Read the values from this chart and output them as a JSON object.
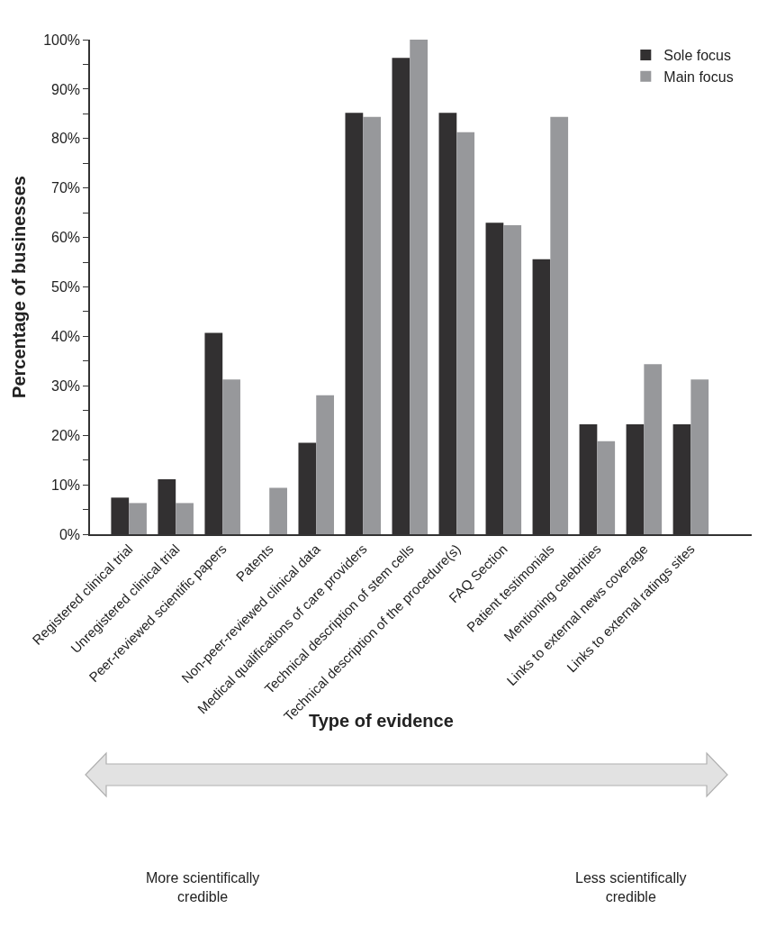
{
  "chart_data": {
    "type": "bar",
    "xlabel": "Type of evidence",
    "ylabel": "Percentage of businesses",
    "categories": [
      "Registered clinical trial",
      "Unregistered clinical trial",
      "Peer-reviewed scientific papers",
      "Patents",
      "Non-peer-reviewed clinical data",
      "Medical qualifications of care providers",
      "Technical description of stem cells",
      "Technical description of the procedure(s)",
      "FAQ Section",
      "Patient testimonials",
      "Mentioning celebrities",
      "Links to external news coverage",
      "Links to external ratings sites"
    ],
    "series": [
      {
        "name": "Sole focus",
        "color": "#323031",
        "values": [
          7.4,
          11.1,
          40.7,
          0,
          18.5,
          85.2,
          96.3,
          85.2,
          63.0,
          55.6,
          22.2,
          22.2,
          22.2
        ]
      },
      {
        "name": "Main focus",
        "color": "#97989b",
        "values": [
          6.3,
          6.3,
          31.3,
          9.4,
          28.1,
          84.4,
          100,
          81.3,
          62.5,
          84.4,
          18.8,
          34.4,
          31.3
        ]
      }
    ],
    "ylim": [
      0,
      100
    ],
    "yticks": [
      {
        "value": 0,
        "label": "0%"
      },
      {
        "value": 5,
        "label": null
      },
      {
        "value": 10,
        "label": "10%"
      },
      {
        "value": 15,
        "label": null
      },
      {
        "value": 20,
        "label": "20%"
      },
      {
        "value": 25,
        "label": null
      },
      {
        "value": 30,
        "label": "30%"
      },
      {
        "value": 35,
        "label": null
      },
      {
        "value": 40,
        "label": "40%"
      },
      {
        "value": 45,
        "label": null
      },
      {
        "value": 50,
        "label": "50%"
      },
      {
        "value": 55,
        "label": null
      },
      {
        "value": 60,
        "label": "60%"
      },
      {
        "value": 65,
        "label": null
      },
      {
        "value": 70,
        "label": "70%"
      },
      {
        "value": 75,
        "label": null
      },
      {
        "value": 80,
        "label": "80%"
      },
      {
        "value": 85,
        "label": null
      },
      {
        "value": 90,
        "label": "90%"
      },
      {
        "value": 95,
        "label": null
      },
      {
        "value": 100,
        "label": "100%"
      }
    ],
    "legend": "top right",
    "annotations": [
      "More scientifically\ncredible",
      "Less scientifically\ncredible"
    ]
  }
}
